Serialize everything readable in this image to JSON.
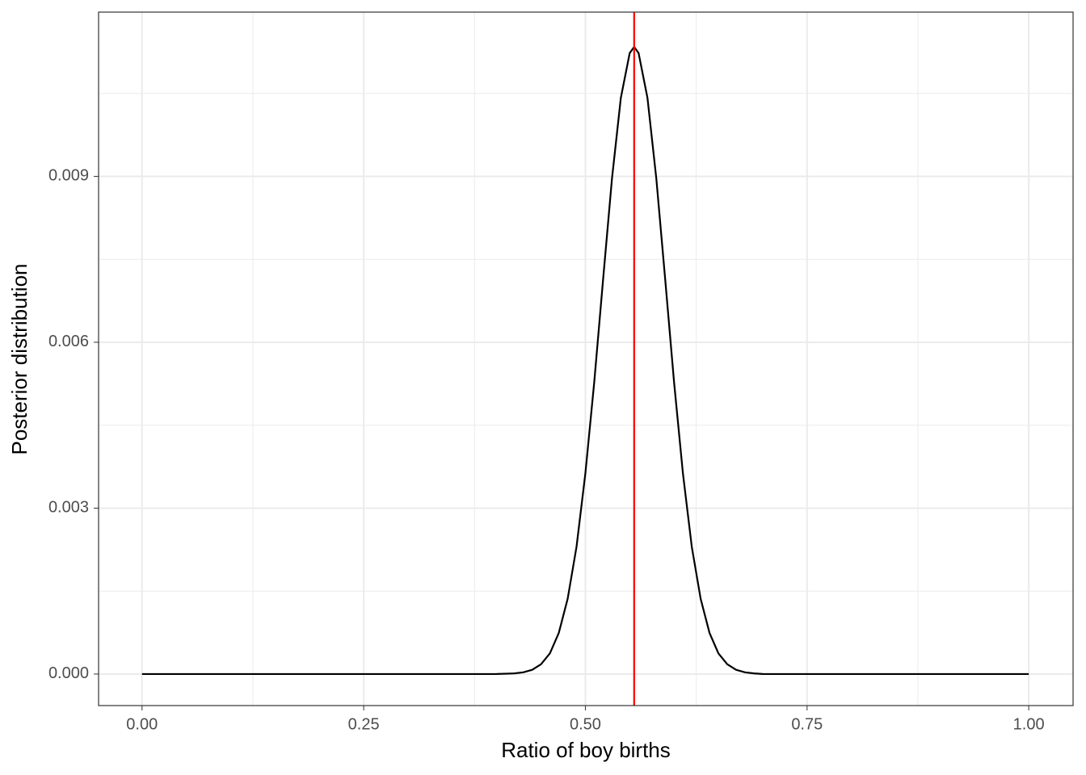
{
  "chart_data": {
    "type": "line",
    "x_label": "Ratio of boy births",
    "y_label": "Posterior distribution",
    "x": [
      0,
      0.1,
      0.2,
      0.3,
      0.4,
      0.42,
      0.43,
      0.44,
      0.45,
      0.46,
      0.47,
      0.48,
      0.49,
      0.5,
      0.51,
      0.52,
      0.53,
      0.54,
      0.55,
      0.555,
      0.56,
      0.57,
      0.58,
      0.59,
      0.6,
      0.61,
      0.62,
      0.63,
      0.64,
      0.65,
      0.66,
      0.67,
      0.68,
      0.69,
      0.7,
      0.8,
      0.9,
      1
    ],
    "series": [
      {
        "color": "#000000",
        "values": [
          0,
          0,
          0,
          0,
          1.3e-06,
          1.17e-05,
          3.12e-05,
          7.7e-05,
          0.000177,
          0.000375,
          0.000743,
          0.00136,
          0.0023,
          0.00363,
          0.00528,
          0.00714,
          0.00896,
          0.01042,
          0.01123,
          0.01134,
          0.01123,
          0.01042,
          0.00896,
          0.00714,
          0.00528,
          0.00363,
          0.0023,
          0.00136,
          0.000743,
          0.000375,
          0.000177,
          7.7e-05,
          3.12e-05,
          1.17e-05,
          1.3e-06,
          0,
          0,
          0
        ]
      }
    ],
    "vline": {
      "x": 0.555,
      "color": "#ff0000"
    },
    "xlim": [
      -0.049,
      1.05
    ],
    "ylim": [
      -0.00057,
      0.01197
    ],
    "xticks": [
      {
        "value": 0,
        "label": "0.00"
      },
      0.25,
      {
        "value": 0.5,
        "label": "0.50"
      },
      0.75,
      {
        "value": 1,
        "label": "1.00"
      }
    ],
    "yticks": [
      {
        "value": 0,
        "label": "0.000"
      },
      0.003,
      0.006,
      0.009
    ],
    "xminor": [
      0.125,
      0.375,
      0.625,
      0.875
    ],
    "yminor": [
      0.0015,
      0.0045,
      0.0075,
      0.0105
    ],
    "grid": true
  }
}
